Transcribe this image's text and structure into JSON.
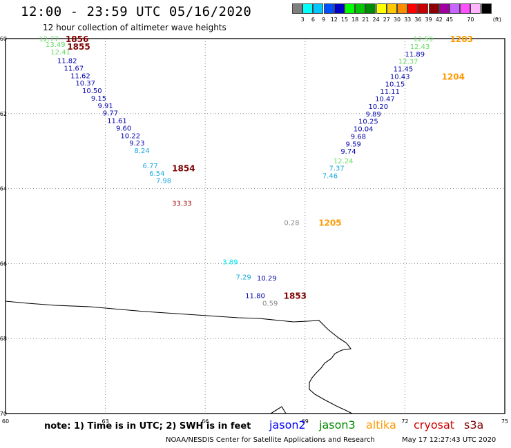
{
  "header": {
    "title": "12:00 - 23:59 UTC 05/16/2020",
    "subtitle": "12 hour collection of altimeter wave heights"
  },
  "colorbar": {
    "colors": [
      "#7f7f7f",
      "#00ffff",
      "#00c8ff",
      "#0050ff",
      "#0000c8",
      "#00ff00",
      "#00c800",
      "#008c00",
      "#ffff00",
      "#ffc800",
      "#ff8c00",
      "#ff0000",
      "#c80000",
      "#8c0000",
      "#a000a0",
      "#c864ff",
      "#ff50ff",
      "#ffb4ff",
      "#000000"
    ],
    "labels": [
      "3",
      "6",
      "9",
      "12",
      "15",
      "18",
      "21",
      "24",
      "27",
      "30",
      "33",
      "36",
      "39",
      "42",
      "45",
      "70"
    ],
    "unit": "(ft)"
  },
  "axes": {
    "lat_ticks": [
      "-60",
      "-62",
      "-64",
      "-66",
      "-68",
      "-70"
    ],
    "lon_ticks": [
      "60",
      "63",
      "66",
      "69",
      "72",
      "75"
    ]
  },
  "colors": {
    "jason2": "#0000ff",
    "jason3": "#008c00",
    "altika": "#ff9900",
    "cryosat": "#cc0000",
    "s3a": "#800000"
  },
  "observations": [
    {
      "lon": 61.3,
      "lat": -60.0,
      "value": "12.77",
      "color": "#66dd66"
    },
    {
      "lon": 61.5,
      "lat": -60.15,
      "value": "13.49",
      "color": "#66dd66"
    },
    {
      "lon": 61.65,
      "lat": -60.35,
      "value": "12.41",
      "color": "#66dd66"
    },
    {
      "lon": 61.85,
      "lat": -60.58,
      "value": "11.82",
      "color": "#0000aa"
    },
    {
      "lon": 62.05,
      "lat": -60.78,
      "value": "11.67",
      "color": "#0000aa"
    },
    {
      "lon": 62.25,
      "lat": -60.98,
      "value": "11.62",
      "color": "#0000aa"
    },
    {
      "lon": 62.4,
      "lat": -61.18,
      "value": "10.37",
      "color": "#0000aa"
    },
    {
      "lon": 62.6,
      "lat": -61.38,
      "value": "10.50",
      "color": "#0000aa"
    },
    {
      "lon": 62.8,
      "lat": -61.58,
      "value": "9.15",
      "color": "#0000aa"
    },
    {
      "lon": 63.0,
      "lat": -61.78,
      "value": "9.91",
      "color": "#0000aa"
    },
    {
      "lon": 63.15,
      "lat": -61.98,
      "value": "9.77",
      "color": "#0000aa"
    },
    {
      "lon": 63.35,
      "lat": -62.18,
      "value": "11.61",
      "color": "#0000aa"
    },
    {
      "lon": 63.55,
      "lat": -62.38,
      "value": "9.60",
      "color": "#0000aa"
    },
    {
      "lon": 63.75,
      "lat": -62.58,
      "value": "10.22",
      "color": "#0000aa"
    },
    {
      "lon": 63.95,
      "lat": -62.78,
      "value": "9.23",
      "color": "#0000aa"
    },
    {
      "lon": 64.1,
      "lat": -62.98,
      "value": "8.24",
      "color": "#1aaadd"
    },
    {
      "lon": 64.35,
      "lat": -63.38,
      "value": "6.77",
      "color": "#1aaadd"
    },
    {
      "lon": 64.55,
      "lat": -63.58,
      "value": "6.54",
      "color": "#1aaadd"
    },
    {
      "lon": 64.75,
      "lat": -63.78,
      "value": "7.98",
      "color": "#1aaadd"
    },
    {
      "lon": 65.3,
      "lat": -64.38,
      "value": "33.33",
      "color": "#990000"
    },
    {
      "lon": 72.55,
      "lat": -60.0,
      "value": "12.59",
      "color": "#66dd66"
    },
    {
      "lon": 72.45,
      "lat": -60.2,
      "value": "12.43",
      "color": "#66dd66"
    },
    {
      "lon": 72.3,
      "lat": -60.4,
      "value": "11.89",
      "color": "#0000aa"
    },
    {
      "lon": 72.1,
      "lat": -60.6,
      "value": "12.37",
      "color": "#66dd66"
    },
    {
      "lon": 71.95,
      "lat": -60.8,
      "value": "11.45",
      "color": "#0000aa"
    },
    {
      "lon": 71.85,
      "lat": -61.0,
      "value": "10.43",
      "color": "#0000aa"
    },
    {
      "lon": 71.7,
      "lat": -61.2,
      "value": "10.15",
      "color": "#0000aa"
    },
    {
      "lon": 71.55,
      "lat": -61.4,
      "value": "11.11",
      "color": "#0000aa"
    },
    {
      "lon": 71.4,
      "lat": -61.6,
      "value": "10.47",
      "color": "#0000aa"
    },
    {
      "lon": 71.2,
      "lat": -61.8,
      "value": "10.20",
      "color": "#0000aa"
    },
    {
      "lon": 71.05,
      "lat": -62.0,
      "value": "9.89",
      "color": "#0000aa"
    },
    {
      "lon": 70.9,
      "lat": -62.2,
      "value": "10.25",
      "color": "#0000aa"
    },
    {
      "lon": 70.75,
      "lat": -62.4,
      "value": "10.04",
      "color": "#0000aa"
    },
    {
      "lon": 70.6,
      "lat": -62.6,
      "value": "9.68",
      "color": "#0000aa"
    },
    {
      "lon": 70.45,
      "lat": -62.8,
      "value": "9.59",
      "color": "#0000aa"
    },
    {
      "lon": 70.3,
      "lat": -63.0,
      "value": "9.74",
      "color": "#0000aa"
    },
    {
      "lon": 70.15,
      "lat": -63.25,
      "value": "12.24",
      "color": "#66dd66"
    },
    {
      "lon": 69.95,
      "lat": -63.45,
      "value": "7.37",
      "color": "#1aaadd"
    },
    {
      "lon": 69.75,
      "lat": -63.65,
      "value": "7.46",
      "color": "#1aaadd"
    },
    {
      "lon": 68.6,
      "lat": -64.9,
      "value": "0.28",
      "color": "#888888"
    },
    {
      "lon": 66.75,
      "lat": -65.95,
      "value": "3.89",
      "color": "#00e5ee"
    },
    {
      "lon": 67.15,
      "lat": -66.35,
      "value": "7.29",
      "color": "#1aaadd"
    },
    {
      "lon": 67.85,
      "lat": -66.38,
      "value": "10.29",
      "color": "#0000aa"
    },
    {
      "lon": 67.5,
      "lat": -66.85,
      "value": "11.80",
      "color": "#0000aa"
    },
    {
      "lon": 67.95,
      "lat": -67.05,
      "value": "0.59",
      "color": "#888888"
    }
  ],
  "time_labels": [
    {
      "lon": 62.15,
      "lat": -60.0,
      "text": "1856",
      "color": "#800000"
    },
    {
      "lon": 62.2,
      "lat": -60.2,
      "text": "1855",
      "color": "#800000"
    },
    {
      "lon": 65.35,
      "lat": -63.45,
      "text": "1854",
      "color": "#800000"
    },
    {
      "lon": 68.7,
      "lat": -66.85,
      "text": "1853",
      "color": "#800000"
    },
    {
      "lon": 73.7,
      "lat": -60.0,
      "text": "1203",
      "color": "#ff9900"
    },
    {
      "lon": 73.45,
      "lat": -61.0,
      "text": "1204",
      "color": "#ff9900"
    },
    {
      "lon": 69.75,
      "lat": -64.9,
      "text": "1205",
      "color": "#ff9900"
    }
  ],
  "footer": {
    "note": "note:  1) Time is in UTC;  2) SWH is in feet",
    "satellites": [
      "jason2",
      "jason3",
      "altika",
      "cryosat",
      "s3a"
    ],
    "credit": "NOAA/NESDIS Center for Satellite Applications and Research",
    "timestamp": "May 17 12:27:43 UTC 2020"
  }
}
